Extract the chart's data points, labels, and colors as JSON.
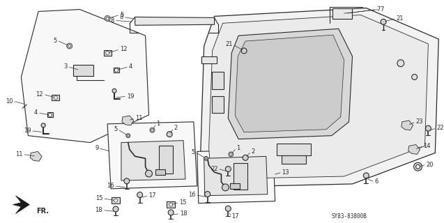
{
  "bg_color": "#ffffff",
  "line_color": "#2a2a2a",
  "diagram_code": "SY83-83800B",
  "fig_width": 6.37,
  "fig_height": 3.2,
  "dpi": 100
}
